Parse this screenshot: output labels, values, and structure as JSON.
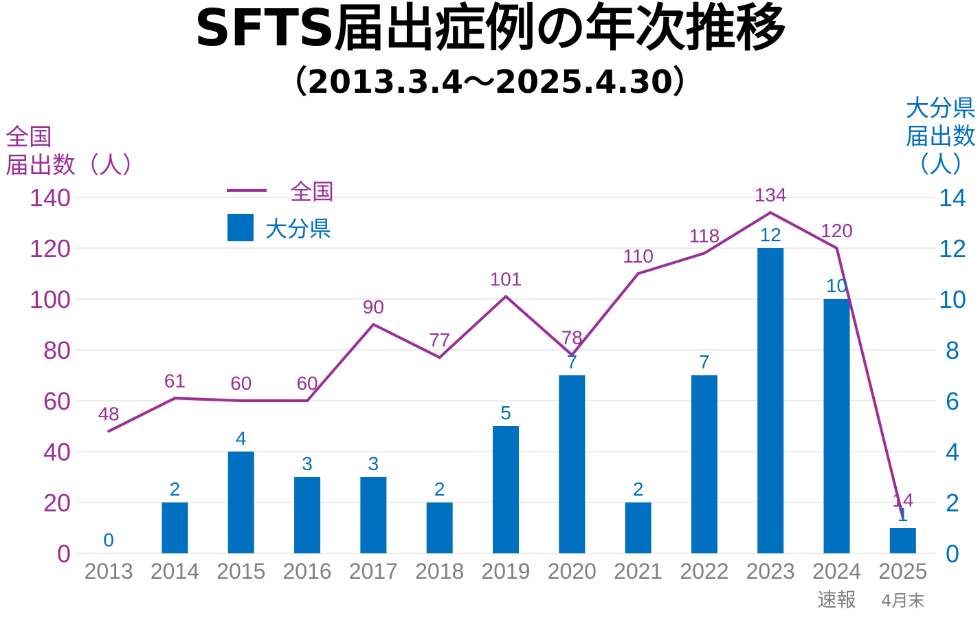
{
  "chart_data": {
    "type": "bar+line",
    "title": "SFTS届出症例の年次推移",
    "subtitle": "（2013.3.4～2025.4.30）",
    "categories": [
      "2013",
      "2014",
      "2015",
      "2016",
      "2017",
      "2018",
      "2019",
      "2020",
      "2021",
      "2022",
      "2023",
      "2024",
      "2025"
    ],
    "category_notes": {
      "2024": "速報",
      "2025": "4月末"
    },
    "series": [
      {
        "name": "全国",
        "type": "line",
        "axis": "left",
        "color": "#9B2F97",
        "values": [
          48,
          61,
          60,
          60,
          90,
          77,
          101,
          78,
          110,
          118,
          134,
          120,
          14
        ]
      },
      {
        "name": "大分県",
        "type": "bar",
        "axis": "right",
        "color": "#0070C0",
        "values": [
          0,
          2,
          4,
          3,
          3,
          2,
          5,
          7,
          2,
          7,
          12,
          10,
          1
        ]
      }
    ],
    "y_left": {
      "label_lines": [
        "全国",
        "届出数（人）"
      ],
      "ylim": [
        0,
        140
      ],
      "ticks": [
        0,
        20,
        40,
        60,
        80,
        100,
        120,
        140
      ],
      "color": "#9B2F97"
    },
    "y_right": {
      "label_lines": [
        "大分県",
        "届出数",
        "（人）"
      ],
      "ylim": [
        0,
        14
      ],
      "ticks": [
        0,
        2,
        4,
        6,
        8,
        10,
        12,
        14
      ],
      "color": "#0070C0"
    },
    "grid": true,
    "legend_position": "top-left",
    "tick_color": "#808080",
    "grid_color": "#D9D9D9"
  }
}
